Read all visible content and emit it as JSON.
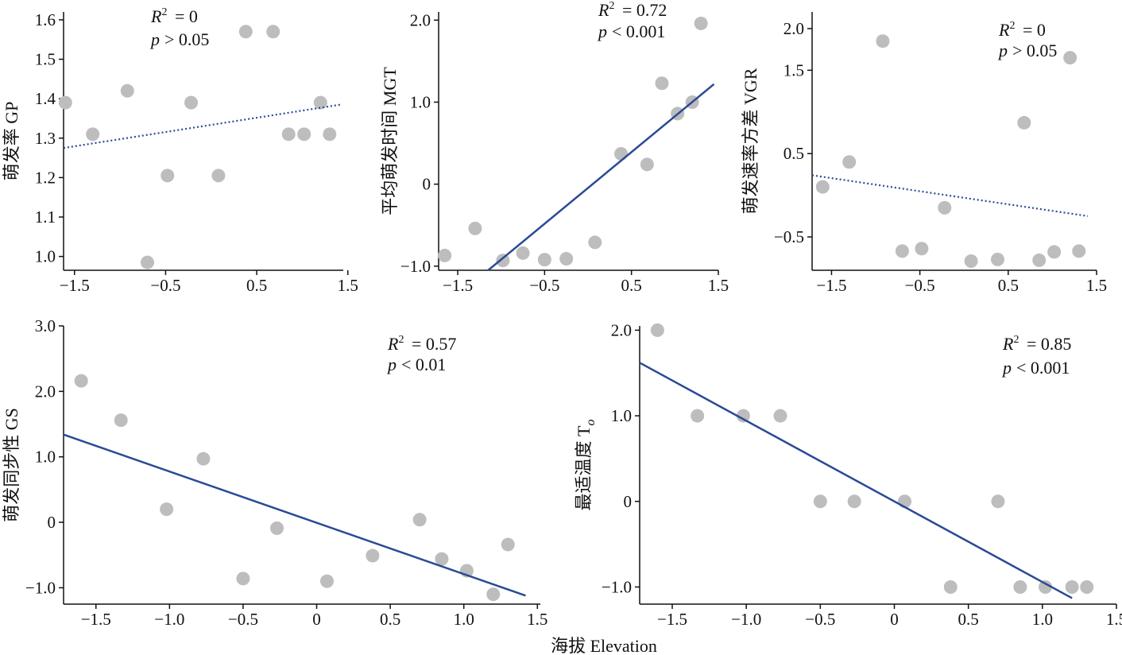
{
  "figure": {
    "shared_xlabel": "海拔 Elevation"
  },
  "colors": {
    "point": "#bdbdbd",
    "line": "#2a4a96",
    "axis": "#111111"
  },
  "chart_data": [
    {
      "id": "gp",
      "type": "scatter",
      "ylabel": "萌发率 GP",
      "xlim": [
        -1.62,
        1.45
      ],
      "ylim": [
        0.965,
        1.62
      ],
      "xticks": [
        -1.5,
        -0.5,
        0.5,
        1.5
      ],
      "xtick_labels": [
        "−1.5",
        "−0.5",
        "0.5",
        "1.5"
      ],
      "yticks": [
        1.0,
        1.1,
        1.2,
        1.3,
        1.4,
        1.5,
        1.6
      ],
      "ytick_labels": [
        "1.0",
        "1.1",
        "1.2",
        "1.3",
        "1.4",
        "1.5",
        "1.6"
      ],
      "points": [
        [
          -1.6,
          1.39
        ],
        [
          -1.3,
          1.31
        ],
        [
          -0.92,
          1.42
        ],
        [
          -0.7,
          0.985
        ],
        [
          -0.48,
          1.205
        ],
        [
          -0.22,
          1.39
        ],
        [
          0.08,
          1.205
        ],
        [
          0.38,
          1.57
        ],
        [
          0.68,
          1.57
        ],
        [
          0.85,
          1.31
        ],
        [
          1.02,
          1.31
        ],
        [
          1.2,
          1.39
        ],
        [
          1.3,
          1.31
        ]
      ],
      "fit": {
        "style": "dotted",
        "x": [
          -1.62,
          1.42
        ],
        "y": [
          1.275,
          1.385
        ]
      },
      "stats": {
        "r2": "= 0",
        "p": "> 0.05"
      }
    },
    {
      "id": "mgt",
      "type": "scatter",
      "ylabel": "平均萌发时间 MGT",
      "xlim": [
        -1.72,
        1.5
      ],
      "ylim": [
        -1.05,
        2.1
      ],
      "xticks": [
        -1.5,
        -0.5,
        0.5,
        1.5
      ],
      "xtick_labels": [
        "−1.5",
        "−0.5",
        "0.5",
        "1.5"
      ],
      "yticks": [
        -1.0,
        0,
        1.0,
        2.0
      ],
      "ytick_labels": [
        "−1.0",
        "0",
        "1.0",
        "2.0"
      ],
      "points": [
        [
          -1.65,
          -0.87
        ],
        [
          -1.3,
          -0.54
        ],
        [
          -0.98,
          -0.93
        ],
        [
          -0.75,
          -0.84
        ],
        [
          -0.5,
          -0.92
        ],
        [
          -0.25,
          -0.91
        ],
        [
          0.08,
          -0.71
        ],
        [
          0.38,
          0.37
        ],
        [
          0.68,
          0.24
        ],
        [
          0.85,
          1.23
        ],
        [
          1.03,
          0.86
        ],
        [
          1.2,
          1.0
        ],
        [
          1.3,
          1.96
        ]
      ],
      "fit": {
        "style": "solid",
        "x": [
          -1.15,
          1.45
        ],
        "y": [
          -1.05,
          1.22
        ]
      },
      "stats": {
        "r2": "= 0.72",
        "p": "< 0.001"
      }
    },
    {
      "id": "vgr",
      "type": "scatter",
      "ylabel": "萌发速率方差 VGR",
      "xlim": [
        -1.72,
        1.5
      ],
      "ylim": [
        -0.9,
        2.2
      ],
      "xticks": [
        -1.5,
        -0.5,
        0.5,
        1.5
      ],
      "xtick_labels": [
        "−1.5",
        "−0.5",
        "0.5",
        "1.5"
      ],
      "yticks": [
        -0.5,
        0.5,
        1.5,
        2.0
      ],
      "ytick_labels": [
        "−0.5",
        "0.5",
        "1.5",
        "2.0"
      ],
      "points": [
        [
          -1.6,
          0.1
        ],
        [
          -1.3,
          0.4
        ],
        [
          -0.92,
          1.85
        ],
        [
          -0.7,
          -0.67
        ],
        [
          -0.48,
          -0.64
        ],
        [
          -0.22,
          -0.15
        ],
        [
          0.08,
          -0.79
        ],
        [
          0.38,
          -0.77
        ],
        [
          0.68,
          0.87
        ],
        [
          0.85,
          -0.78
        ],
        [
          1.02,
          -0.68
        ],
        [
          1.2,
          1.65
        ],
        [
          1.3,
          -0.67
        ]
      ],
      "fit": {
        "style": "dotted",
        "x": [
          -1.72,
          1.4
        ],
        "y": [
          0.24,
          -0.25
        ]
      },
      "stats": {
        "r2": "= 0",
        "p": "> 0.05"
      }
    },
    {
      "id": "gs",
      "type": "scatter",
      "ylabel": "萌发同步性 GS",
      "xlim": [
        -1.72,
        1.52
      ],
      "ylim": [
        -1.25,
        3.0
      ],
      "xticks": [
        -1.5,
        -1.0,
        -0.5,
        0,
        0.5,
        1.0,
        1.5
      ],
      "xtick_labels": [
        "−1.5",
        "−1.0",
        "−0.5",
        "0",
        "0.5",
        "1.0",
        "1.5"
      ],
      "yticks": [
        -1.0,
        0,
        1.0,
        2.0,
        3.0
      ],
      "ytick_labels": [
        "−1.0",
        "0",
        "1.0",
        "2.0",
        "3.0"
      ],
      "points": [
        [
          -1.6,
          2.16
        ],
        [
          -1.33,
          1.56
        ],
        [
          -1.02,
          0.2
        ],
        [
          -0.77,
          0.97
        ],
        [
          -0.5,
          -0.86
        ],
        [
          -0.27,
          -0.09
        ],
        [
          0.07,
          -0.9
        ],
        [
          0.38,
          -0.51
        ],
        [
          0.7,
          0.04
        ],
        [
          0.85,
          -0.56
        ],
        [
          1.02,
          -0.74
        ],
        [
          1.2,
          -1.1
        ],
        [
          1.3,
          -0.34
        ]
      ],
      "fit": {
        "style": "solid",
        "x": [
          -1.72,
          1.42
        ],
        "y": [
          1.34,
          -1.12
        ]
      },
      "stats": {
        "r2": "= 0.57",
        "p": "< 0.01"
      }
    },
    {
      "id": "to",
      "type": "scatter",
      "ylabel": "最适温度 T",
      "ylabel_subscript": "o",
      "xlim": [
        -1.72,
        1.5
      ],
      "ylim": [
        -1.2,
        2.05
      ],
      "xticks": [
        -1.5,
        -1.0,
        -0.5,
        0,
        0.5,
        1.0,
        1.5
      ],
      "xtick_labels": [
        "−1.5",
        "−1.0",
        "−0.5",
        "0",
        "0.5",
        "1.0",
        "1.5"
      ],
      "yticks": [
        -1.0,
        0,
        1.0,
        2.0
      ],
      "ytick_labels": [
        "−1.0",
        "0",
        "1.0",
        "2.0"
      ],
      "points": [
        [
          -1.6,
          2.0
        ],
        [
          -1.33,
          1.0
        ],
        [
          -1.02,
          1.0
        ],
        [
          -0.77,
          1.0
        ],
        [
          -0.5,
          0.0
        ],
        [
          -0.27,
          0.0
        ],
        [
          0.07,
          0.0
        ],
        [
          0.38,
          -1.0
        ],
        [
          0.7,
          0.0
        ],
        [
          0.85,
          -1.0
        ],
        [
          1.02,
          -1.0
        ],
        [
          1.2,
          -1.0
        ],
        [
          1.3,
          -1.0
        ]
      ],
      "fit": {
        "style": "solid",
        "x": [
          -1.72,
          1.2
        ],
        "y": [
          1.62,
          -1.13
        ]
      },
      "stats": {
        "r2": "= 0.85",
        "p": "< 0.001"
      }
    }
  ]
}
